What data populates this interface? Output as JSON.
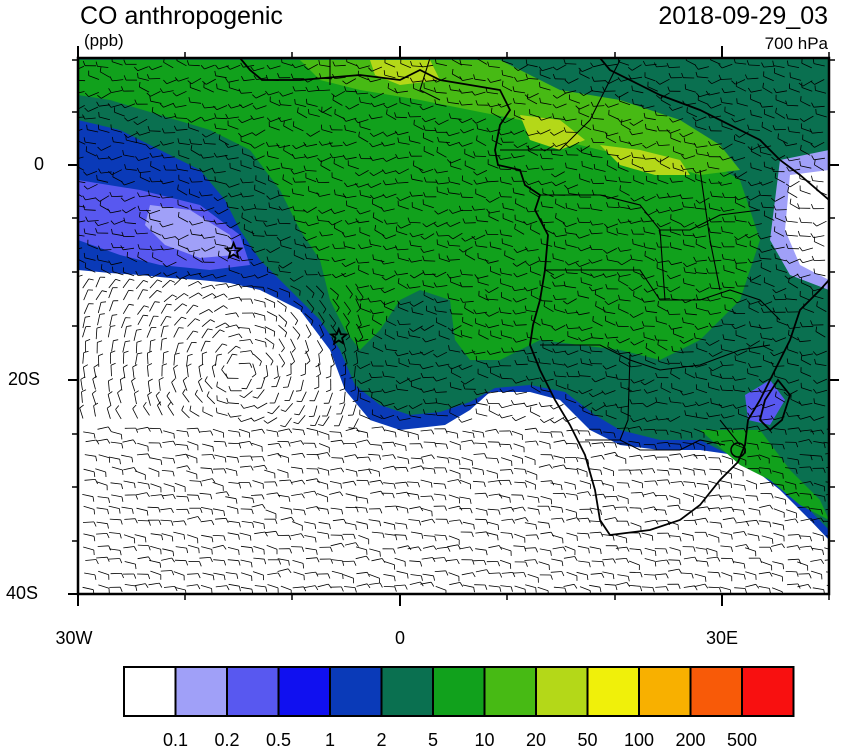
{
  "title": "CO anthropogenic",
  "units": "(ppb)",
  "datetime": "2018-09-29_03",
  "level": "700 hPa",
  "y_axis_labels": [
    "0",
    "20S",
    "40S"
  ],
  "x_axis_labels": [
    "30W",
    "0",
    "30E"
  ],
  "colorbar": {
    "colors": [
      "#ffffff",
      "#a0a0f8",
      "#5858f0",
      "#1010f0",
      "#0a3ab8",
      "#0a7050",
      "#11a11c",
      "#47ba14",
      "#b4d818",
      "#f0f00a",
      "#f8b000",
      "#f85a08",
      "#f81010"
    ],
    "labels": [
      "0.1",
      "0.2",
      "0.5",
      "1",
      "2",
      "5",
      "10",
      "20",
      "50",
      "100",
      "200",
      "500"
    ]
  },
  "markers": [
    {
      "name": "star",
      "lon": -15.5,
      "lat": -8.0
    },
    {
      "name": "star",
      "lon": -5.7,
      "lat": -16.0
    }
  ]
}
